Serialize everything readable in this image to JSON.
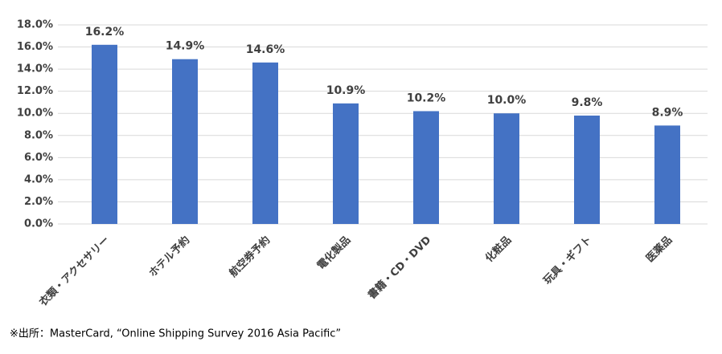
{
  "chart_data": {
    "type": "bar",
    "categories": [
      "衣類・アクセサリー",
      "ホテル予約",
      "航空券予約",
      "電化製品",
      "書籍・CD・DVD",
      "化粧品",
      "玩具・ギフト",
      "医薬品"
    ],
    "values": [
      16.2,
      14.9,
      14.6,
      10.9,
      10.2,
      10.0,
      9.8,
      8.9
    ],
    "value_labels": [
      "16.2%",
      "14.9%",
      "14.6%",
      "10.9%",
      "10.2%",
      "10.0%",
      "9.8%",
      "8.9%"
    ],
    "color": "#4472c4",
    "ylim": [
      0,
      18
    ],
    "yticks": [
      {
        "value": 0,
        "label": "0.0%"
      },
      {
        "value": 2,
        "label": "2.0%"
      },
      {
        "value": 4,
        "label": "4.0%"
      },
      {
        "value": 6,
        "label": "6.0%"
      },
      {
        "value": 8,
        "label": "8.0%"
      },
      {
        "value": 10,
        "label": "10.0%"
      },
      {
        "value": 12,
        "label": "12.0%"
      },
      {
        "value": 14,
        "label": "14.0%"
      },
      {
        "value": 16,
        "label": "16.0%"
      },
      {
        "value": 18,
        "label": "18.0%"
      }
    ],
    "grid": true,
    "source": "※出所：MasterCard, “Online Shipping Survey 2016 Asia Pacific”"
  }
}
